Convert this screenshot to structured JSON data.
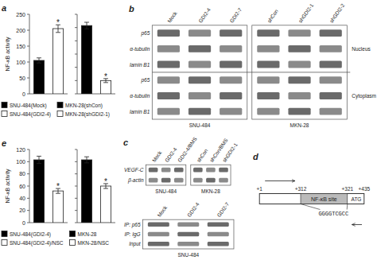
{
  "chart_data": [
    {
      "type": "bar",
      "title": "a",
      "ylabel": "NF-κB activity",
      "categories": [
        null
      ],
      "series": [
        {
          "name": "SNU-484(Mock)",
          "color": "black",
          "values": [
            105
          ],
          "errors": [
            8
          ]
        },
        {
          "name": "SNU-484(GDI2-4)",
          "color": "white",
          "values": [
            205
          ],
          "errors": [
            12
          ],
          "annotation": "*"
        }
      ],
      "ylim": [
        0,
        250
      ],
      "yticks": [
        0,
        50,
        100,
        150,
        200,
        250
      ],
      "legend": "bottom"
    },
    {
      "type": "bar",
      "categories": [
        null
      ],
      "series": [
        {
          "name": "MKN-28(shCon)",
          "color": "black",
          "values": [
            103
          ],
          "errors": [
            5
          ]
        },
        {
          "name": "MKN-28(shGDI2-1)",
          "color": "white",
          "values": [
            20
          ],
          "errors": [
            3
          ],
          "annotation": "*"
        }
      ],
      "ylim": [
        0,
        120
      ],
      "yticks": [
        0,
        20,
        40,
        60,
        80,
        100,
        120
      ],
      "tick_labels": false,
      "legend": "bottom"
    },
    {
      "type": "blot",
      "title": "b",
      "rows": [
        "p65",
        "α-tubulin",
        "lamin B1",
        "p65",
        "α-tubulin",
        "lamin B1"
      ],
      "groups": [
        {
          "name": "SNU-484",
          "lanes": [
            "Mock",
            "GDI2-4",
            "GDI2-7"
          ]
        },
        {
          "name": "MKN-28",
          "lanes": [
            "shCon",
            "shGDI2-1",
            "shGDI2-2"
          ]
        }
      ],
      "sections": [
        "Nucleus",
        "Cytoplasm"
      ]
    },
    {
      "type": "blot",
      "title": "c",
      "rows": [
        "VEGF-C",
        "β-actin"
      ],
      "groups": [
        {
          "name": "SNU-484",
          "lanes": [
            "Mock",
            "GDI2-4",
            "GDI2-4/BMS"
          ]
        },
        {
          "name": "MKN-28",
          "lanes": [
            "shCon",
            "shCon/BMS",
            "shGDI2-1"
          ]
        }
      ]
    },
    {
      "type": "diagram",
      "title": "d",
      "positions": [
        "+1",
        "+312",
        "+321",
        "+435"
      ],
      "site_label": "NF-κB site",
      "atg_label": "ATG",
      "sequence": "GGGGTCGCC"
    },
    {
      "type": "bar",
      "title": "e",
      "ylabel": "NF-κB activity",
      "categories": [
        null
      ],
      "series": [
        {
          "name": "SNU-484(GDI2-4)",
          "color": "black",
          "values": [
            103
          ],
          "errors": [
            6
          ]
        },
        {
          "name": "SNU-484(GDI2-4)/NSC",
          "color": "white",
          "values": [
            52
          ],
          "errors": [
            4
          ],
          "annotation": "*"
        }
      ],
      "ylim": [
        0,
        120
      ],
      "yticks": [
        0,
        20,
        40,
        60,
        80,
        100,
        120
      ],
      "legend": "bottom"
    },
    {
      "type": "bar",
      "categories": [
        null
      ],
      "series": [
        {
          "name": "MKN-28",
          "color": "black",
          "values": [
            103
          ],
          "errors": [
            5
          ]
        },
        {
          "name": "MKN-28/NSC",
          "color": "white",
          "values": [
            60
          ],
          "errors": [
            4
          ],
          "annotation": "*"
        }
      ],
      "ylim": [
        0,
        120
      ],
      "yticks": [
        0,
        20,
        40,
        60,
        80,
        100,
        120
      ],
      "tick_labels": false,
      "legend": "bottom"
    },
    {
      "type": "blot",
      "rows": [
        "IP: p65",
        "IP: IgG",
        "Input"
      ],
      "groups": [
        {
          "name": "SNU-484",
          "lanes": [
            "Mock",
            "GDI2-4",
            "GDI2-7"
          ]
        }
      ]
    }
  ]
}
